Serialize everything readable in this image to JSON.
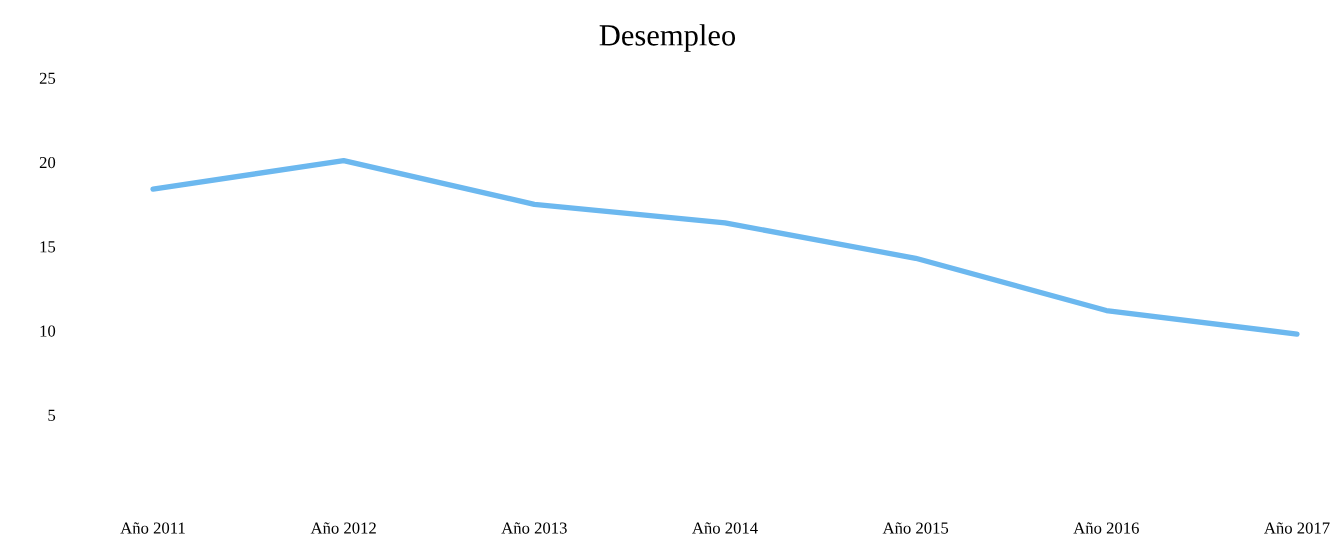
{
  "chart_data": {
    "type": "line",
    "title": "Desempleo",
    "categories": [
      "Año 2011",
      "Año 2012",
      "Año 2013",
      "Año 2014",
      "Año 2015",
      "Año 2016",
      "Año 2017"
    ],
    "series": [
      {
        "color": "#6cb8ef",
        "values": [
          18.4,
          20.1,
          17.5,
          16.4,
          14.3,
          11.2,
          9.8
        ]
      }
    ],
    "ylim": [
      5,
      25
    ],
    "yticks": [
      5,
      10,
      15,
      20,
      25
    ],
    "grid": false,
    "legend": false,
    "marker": "none",
    "line_style": "solid"
  }
}
